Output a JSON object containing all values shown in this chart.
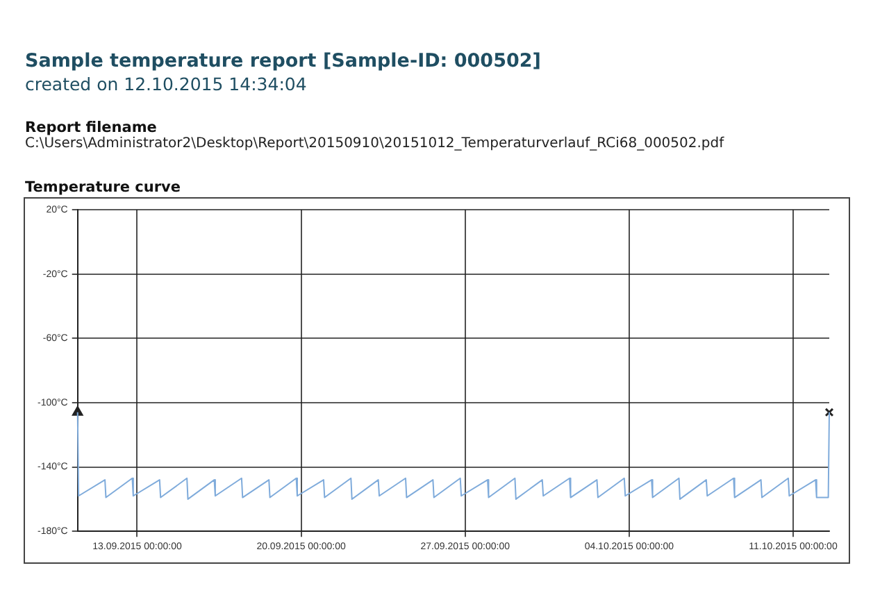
{
  "chart_data": {
    "type": "line",
    "title": "Sample temperature report [Sample-ID: 000502]",
    "subtitle": "created on 12.10.2015 14:34:04",
    "annotations": [
      "Report filename",
      "C:\\Users\\Administrator2\\Desktop\\Report\\20150910\\20151012_Temperaturverlauf_RCi68_000502.pdf",
      "Temperature curve"
    ],
    "xlim": [
      "2015-09-10T11:00",
      "2015-10-12T13:00"
    ],
    "xticks": [
      {
        "value": "2015-09-13T00:00",
        "label": "13.09.2015 00:00:00"
      },
      {
        "value": "2015-09-20T00:00",
        "label": "20.09.2015 00:00:00"
      },
      {
        "value": "2015-09-27T00:00",
        "label": "27.09.2015 00:00:00"
      },
      {
        "value": "2015-10-04T00:00",
        "label": "04.10.2015 00:00:00"
      },
      {
        "value": "2015-10-11T00:00",
        "label": "11.10.2015 00:00:00"
      }
    ],
    "ylim": [
      -180,
      20
    ],
    "yticks": [
      {
        "value": -180,
        "label": "-180°C"
      },
      {
        "value": -140,
        "label": "-140°C"
      },
      {
        "value": -100,
        "label": "-100°C"
      },
      {
        "value": -60,
        "label": "-60°C"
      },
      {
        "value": -20,
        "label": "-20°C"
      },
      {
        "value": 20,
        "label": "20°C"
      }
    ],
    "grid": true,
    "legend": false,
    "series": [
      {
        "color": "#7fabdb",
        "marker": "none",
        "x": [
          "2015-09-10T11:00",
          "2015-09-10T12:00",
          "2015-09-11T15:00",
          "2015-09-11T16:00",
          "2015-09-12T19:00",
          "2015-09-12T20:00",
          "2015-09-13T23:00",
          "2015-09-14T00:00",
          "2015-09-15T03:00",
          "2015-09-15T04:00",
          "2015-09-16T07:00",
          "2015-09-16T08:00",
          "2015-09-17T11:00",
          "2015-09-17T12:00",
          "2015-09-18T15:00",
          "2015-09-18T16:00",
          "2015-09-19T19:00",
          "2015-09-19T20:00",
          "2015-09-20T23:00",
          "2015-09-21T00:00",
          "2015-09-22T03:00",
          "2015-09-22T04:00",
          "2015-09-23T07:00",
          "2015-09-23T08:00",
          "2015-09-24T11:00",
          "2015-09-24T12:00",
          "2015-09-25T15:00",
          "2015-09-25T16:00",
          "2015-09-26T19:00",
          "2015-09-26T20:00",
          "2015-09-27T23:00",
          "2015-09-28T00:00",
          "2015-09-29T03:00",
          "2015-09-29T04:00",
          "2015-09-30T07:00",
          "2015-09-30T08:00",
          "2015-10-01T11:00",
          "2015-10-01T12:00",
          "2015-10-02T15:00",
          "2015-10-02T16:00",
          "2015-10-03T19:00",
          "2015-10-03T20:00",
          "2015-10-04T23:00",
          "2015-10-05T00:00",
          "2015-10-06T03:00",
          "2015-10-06T04:00",
          "2015-10-07T07:00",
          "2015-10-07T08:00",
          "2015-10-08T11:00",
          "2015-10-08T12:00",
          "2015-10-09T15:00",
          "2015-10-09T16:00",
          "2015-10-10T19:00",
          "2015-10-10T20:00",
          "2015-10-11T23:00",
          "2015-10-12T00:00",
          "2015-10-12T12:00",
          "2015-10-12T13:00"
        ],
        "values": [
          -106,
          -158,
          -148,
          -159,
          -147,
          -158,
          -148,
          -159,
          -147,
          -160,
          -148,
          -158,
          -147,
          -159,
          -148,
          -159,
          -147,
          -158,
          -148,
          -159,
          -147,
          -160,
          -148,
          -158,
          -147,
          -159,
          -148,
          -159,
          -147,
          -158,
          -148,
          -159,
          -147,
          -160,
          -148,
          -158,
          -147,
          -159,
          -148,
          -159,
          -147,
          -158,
          -148,
          -159,
          -147,
          -160,
          -148,
          -158,
          -147,
          -159,
          -148,
          -159,
          -147,
          -158,
          -148,
          -159,
          -159,
          -106
        ]
      },
      {
        "type": "scatter",
        "color": "#222222",
        "marker": "triangle",
        "x": [
          "2015-09-10T11:00"
        ],
        "values": [
          -106
        ]
      },
      {
        "type": "scatter",
        "color": "#222222",
        "marker": "cross",
        "x": [
          "2015-10-12T13:00"
        ],
        "values": [
          -106
        ]
      }
    ]
  }
}
